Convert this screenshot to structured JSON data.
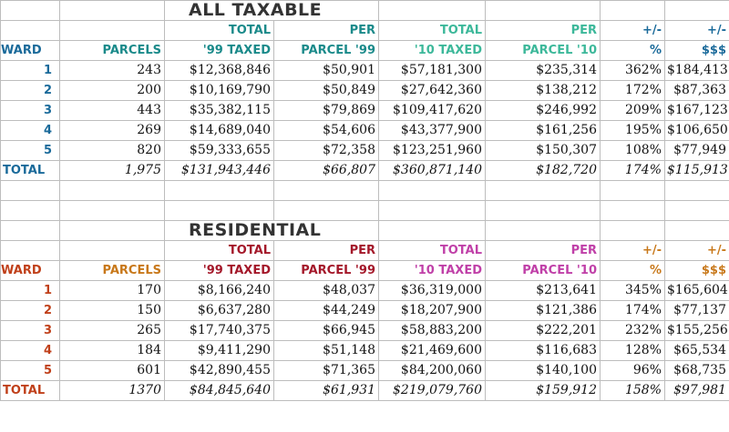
{
  "colors": {
    "teal": "#1a8a8a",
    "blue_dark": "#1a6a9a",
    "green": "#3cb89a",
    "brown_red": "#a4182a",
    "magenta": "#c040a8",
    "orange": "#c8781a",
    "orange_red": "#c0401a"
  },
  "sections": [
    {
      "title": "ALL TAXABLE",
      "header_top": [
        "",
        "",
        "TOTAL",
        "PER",
        "TOTAL",
        "PER",
        "+/-",
        "+/-"
      ],
      "header_bottom": [
        "WARD",
        "PARCELS",
        "'99 TAXED",
        "PARCEL '99",
        "'10 TAXED",
        "PARCEL '10",
        "%",
        "$$$"
      ],
      "rows": [
        [
          "1",
          "243",
          "$12,368,846",
          "$50,901",
          "$57,181,300",
          "$235,314",
          "362%",
          "$184,413"
        ],
        [
          "2",
          "200",
          "$10,169,790",
          "$50,849",
          "$27,642,360",
          "$138,212",
          "172%",
          "$87,363"
        ],
        [
          "3",
          "443",
          "$35,382,115",
          "$79,869",
          "$109,417,620",
          "$246,992",
          "209%",
          "$167,123"
        ],
        [
          "4",
          "269",
          "$14,689,040",
          "$54,606",
          "$43,377,900",
          "$161,256",
          "195%",
          "$106,650"
        ],
        [
          "5",
          "820",
          "$59,333,655",
          "$72,358",
          "$123,251,960",
          "$150,307",
          "108%",
          "$77,949"
        ]
      ],
      "total": [
        "TOTAL",
        "1,975",
        "$131,943,446",
        "$66,807",
        "$360,871,140",
        "$182,720",
        "174%",
        "$115,913"
      ]
    },
    {
      "title": "RESIDENTIAL",
      "header_top": [
        "",
        "",
        "TOTAL",
        "PER",
        "TOTAL",
        "PER",
        "+/-",
        "+/-"
      ],
      "header_bottom": [
        "WARD",
        "PARCELS",
        "'99 TAXED",
        "PARCEL '99",
        "'10 TAXED",
        "PARCEL '10",
        "%",
        "$$$"
      ],
      "rows": [
        [
          "1",
          "170",
          "$8,166,240",
          "$48,037",
          "$36,319,000",
          "$213,641",
          "345%",
          "$165,604"
        ],
        [
          "2",
          "150",
          "$6,637,280",
          "$44,249",
          "$18,207,900",
          "$121,386",
          "174%",
          "$77,137"
        ],
        [
          "3",
          "265",
          "$17,740,375",
          "$66,945",
          "$58,883,200",
          "$222,201",
          "232%",
          "$155,256"
        ],
        [
          "4",
          "184",
          "$9,411,290",
          "$51,148",
          "$21,469,600",
          "$116,683",
          "128%",
          "$65,534"
        ],
        [
          "5",
          "601",
          "$42,890,455",
          "$71,365",
          "$84,200,060",
          "$140,100",
          "96%",
          "$68,735"
        ]
      ],
      "total": [
        "TOTAL",
        "1370",
        "$84,845,640",
        "$61,931",
        "$219,079,760",
        "$159,912",
        "158%",
        "$97,981"
      ]
    }
  ]
}
